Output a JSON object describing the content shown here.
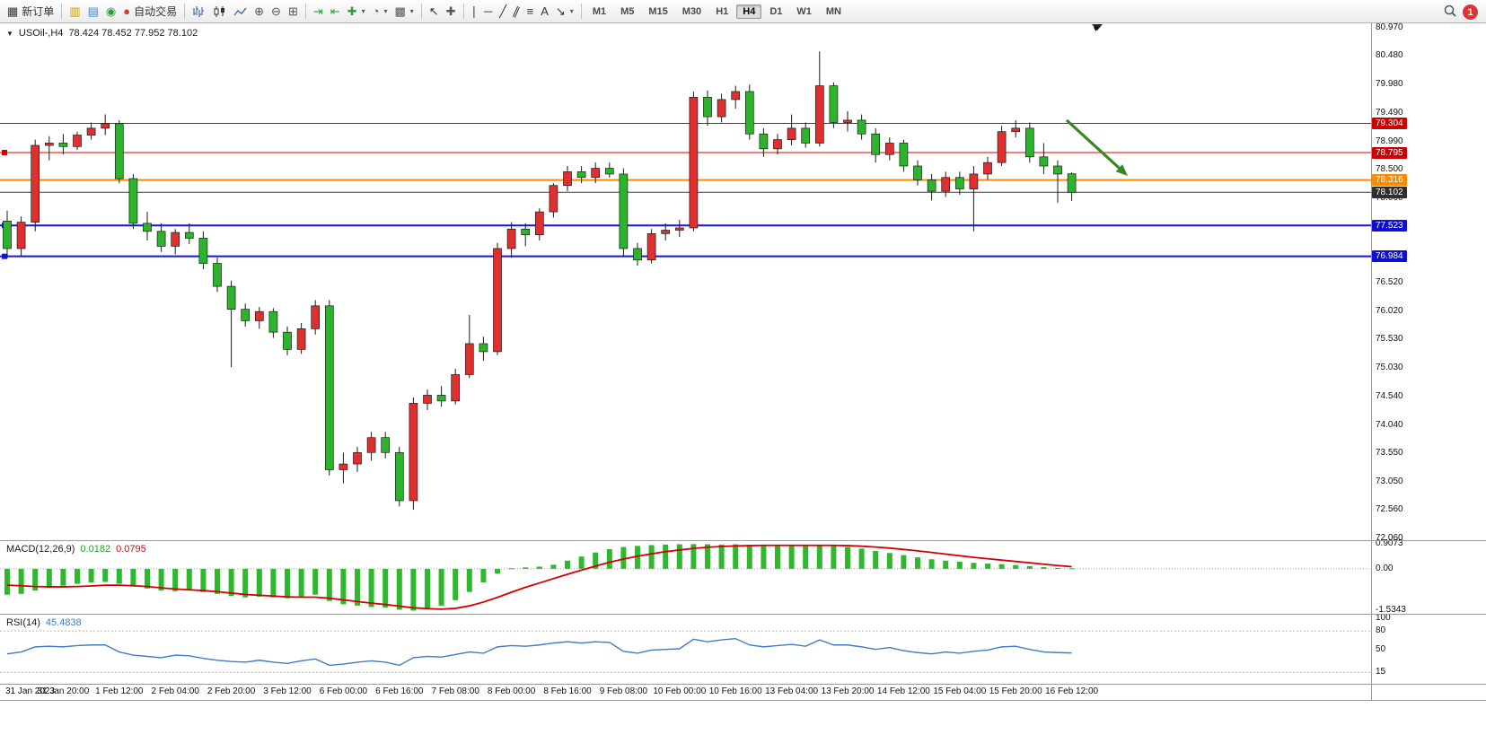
{
  "toolbar": {
    "new_order_label": "新订单",
    "auto_trading_label": "自动交易",
    "timeframes": [
      "M1",
      "M5",
      "M15",
      "M30",
      "H1",
      "H4",
      "D1",
      "W1",
      "MN"
    ],
    "active_timeframe": "H4",
    "notification_count": "1",
    "icons": {
      "new_order": "▦",
      "new_chart": "▥",
      "market_watch": "▤",
      "navigator": "◉",
      "auto_trading": "●",
      "zoom_in": "⊕",
      "zoom_out": "⊖",
      "tile_windows": "⊞",
      "auto_scroll": "⇥",
      "chart_shift": "⇤",
      "indicators": "✚",
      "periods": "◔",
      "templates": "▩",
      "cursor": "↖",
      "crosshair": "✚",
      "vertical_line": "∣",
      "horizontal_line": "─",
      "trendline": "╱",
      "channel": "∥",
      "fibonacci": "≡",
      "text_tool": "A",
      "arrows_tool": "↘",
      "dropdown": "▾"
    }
  },
  "chart": {
    "collapse_marker": "▼",
    "scroll_marker": "▼"
  },
  "chart_data": [
    {
      "type": "candlestick",
      "title": "USOil-,H4",
      "ohlc_text": "78.424 78.452 77.952 78.102",
      "up_color": "#e02f2f",
      "down_color": "#2cb42c",
      "ylim": [
        72.03,
        81.05
      ],
      "price_axis_labels": [
        "80.970",
        "80.480",
        "79.980",
        "79.490",
        "78.990",
        "78.500",
        "78.000",
        "77.500",
        "77.000",
        "76.520",
        "76.020",
        "75.530",
        "75.030",
        "74.540",
        "74.040",
        "73.550",
        "73.050",
        "72.560",
        "72.060"
      ],
      "time_labels": [
        "31 Jan 2023",
        "31 Jan 20:00",
        "1 Feb 12:00",
        "2 Feb 04:00",
        "2 Feb 20:00",
        "3 Feb 12:00",
        "6 Feb 00:00",
        "6 Feb 16:00",
        "7 Feb 08:00",
        "8 Feb 00:00",
        "8 Feb 16:00",
        "9 Feb 08:00",
        "10 Feb 00:00",
        "10 Feb 16:00",
        "13 Feb 04:00",
        "13 Feb 20:00",
        "14 Feb 12:00",
        "15 Feb 04:00",
        "15 Feb 20:00",
        "16 Feb 12:00"
      ],
      "horizontal_lines": [
        {
          "price": 79.304,
          "color": "#dd0000",
          "width": 1,
          "tag_bg": "#cc0000",
          "left_marker": false
        },
        {
          "price": 78.795,
          "color": "#dd0000",
          "width": 1,
          "tag_bg": "#cc0000",
          "left_marker": true
        },
        {
          "price": 78.316,
          "color": "#ff8a00",
          "width": 2,
          "tag_bg": "#ff8a00",
          "left_marker": false
        },
        {
          "price": 78.102,
          "color": "#3c3c3c",
          "width": 1,
          "tag_bg": "#2e2e2e",
          "left_marker": false
        },
        {
          "price": 77.523,
          "color": "#1414dd",
          "width": 2,
          "tag_bg": "#0f0fd0",
          "left_marker": true
        },
        {
          "price": 76.984,
          "color": "#1414dd",
          "width": 2,
          "tag_bg": "#0f0fd0",
          "left_marker": true
        }
      ],
      "annotation_arrow": {
        "from": [
          1188,
          108
        ],
        "to": [
          1256,
          170
        ],
        "color": "#35891f"
      },
      "candles": [
        [
          77.6,
          77.78,
          76.95,
          77.12
        ],
        [
          77.12,
          77.68,
          76.98,
          77.58
        ],
        [
          77.58,
          79.02,
          77.42,
          78.92
        ],
        [
          78.92,
          79.08,
          78.66,
          78.96
        ],
        [
          78.96,
          79.12,
          78.76,
          78.9
        ],
        [
          78.9,
          79.16,
          78.84,
          79.1
        ],
        [
          79.1,
          79.32,
          79.02,
          79.22
        ],
        [
          79.22,
          79.46,
          79.1,
          79.3
        ],
        [
          79.3,
          79.36,
          78.26,
          78.34
        ],
        [
          78.34,
          78.42,
          77.46,
          77.56
        ],
        [
          77.56,
          77.76,
          77.26,
          77.42
        ],
        [
          77.42,
          77.56,
          77.06,
          77.16
        ],
        [
          77.16,
          77.46,
          77.02,
          77.4
        ],
        [
          77.4,
          77.56,
          77.2,
          77.3
        ],
        [
          77.3,
          77.42,
          76.76,
          76.86
        ],
        [
          76.86,
          76.96,
          76.36,
          76.46
        ],
        [
          76.46,
          76.56,
          75.05,
          76.06
        ],
        [
          76.06,
          76.16,
          75.76,
          75.86
        ],
        [
          75.86,
          76.1,
          75.72,
          76.02
        ],
        [
          76.02,
          76.08,
          75.56,
          75.66
        ],
        [
          75.66,
          75.76,
          75.26,
          75.36
        ],
        [
          75.36,
          75.82,
          75.28,
          75.72
        ],
        [
          75.72,
          76.22,
          75.62,
          76.12
        ],
        [
          76.12,
          76.22,
          73.16,
          73.26
        ],
        [
          73.26,
          73.56,
          73.02,
          73.36
        ],
        [
          73.36,
          73.66,
          73.22,
          73.56
        ],
        [
          73.56,
          73.92,
          73.42,
          73.82
        ],
        [
          73.82,
          73.92,
          73.46,
          73.56
        ],
        [
          73.56,
          73.66,
          72.62,
          72.72
        ],
        [
          72.72,
          74.52,
          72.56,
          74.42
        ],
        [
          74.42,
          74.66,
          74.3,
          74.56
        ],
        [
          74.56,
          74.72,
          74.36,
          74.46
        ],
        [
          74.46,
          75.02,
          74.4,
          74.92
        ],
        [
          74.92,
          75.96,
          74.86,
          75.46
        ],
        [
          75.46,
          75.58,
          75.16,
          75.32
        ],
        [
          75.32,
          77.22,
          75.26,
          77.12
        ],
        [
          77.12,
          77.58,
          76.96,
          77.46
        ],
        [
          77.46,
          77.56,
          77.16,
          77.36
        ],
        [
          77.36,
          77.82,
          77.26,
          77.76
        ],
        [
          77.76,
          78.26,
          77.66,
          78.22
        ],
        [
          78.22,
          78.56,
          78.12,
          78.46
        ],
        [
          78.46,
          78.56,
          78.26,
          78.36
        ],
        [
          78.36,
          78.62,
          78.26,
          78.52
        ],
        [
          78.52,
          78.62,
          78.36,
          78.42
        ],
        [
          78.42,
          78.52,
          76.98,
          77.12
        ],
        [
          77.12,
          77.22,
          76.82,
          76.92
        ],
        [
          76.92,
          77.46,
          76.86,
          77.38
        ],
        [
          77.38,
          77.56,
          77.26,
          77.44
        ],
        [
          77.44,
          77.62,
          77.32,
          77.48
        ],
        [
          77.48,
          79.86,
          77.42,
          79.76
        ],
        [
          79.76,
          79.88,
          79.26,
          79.42
        ],
        [
          79.42,
          79.82,
          79.32,
          79.72
        ],
        [
          79.72,
          79.96,
          79.56,
          79.86
        ],
        [
          79.86,
          79.98,
          79.02,
          79.12
        ],
        [
          79.12,
          79.22,
          78.72,
          78.86
        ],
        [
          78.86,
          79.12,
          78.76,
          79.02
        ],
        [
          79.02,
          79.46,
          78.92,
          79.22
        ],
        [
          79.22,
          79.32,
          78.88,
          78.96
        ],
        [
          78.96,
          80.56,
          78.9,
          79.96
        ],
        [
          79.96,
          80.02,
          79.22,
          79.32
        ],
        [
          79.32,
          79.52,
          79.16,
          79.36
        ],
        [
          79.36,
          79.46,
          79.02,
          79.12
        ],
        [
          79.12,
          79.22,
          78.62,
          78.76
        ],
        [
          78.76,
          79.06,
          78.66,
          78.96
        ],
        [
          78.96,
          79.02,
          78.46,
          78.56
        ],
        [
          78.56,
          78.66,
          78.22,
          78.32
        ],
        [
          78.32,
          78.42,
          77.96,
          78.12
        ],
        [
          78.12,
          78.46,
          78.02,
          78.36
        ],
        [
          78.36,
          78.46,
          78.06,
          78.16
        ],
        [
          78.16,
          78.56,
          77.42,
          78.42
        ],
        [
          78.42,
          78.72,
          78.32,
          78.62
        ],
        [
          78.62,
          79.26,
          78.56,
          79.16
        ],
        [
          79.16,
          79.36,
          79.06,
          79.22
        ],
        [
          79.22,
          79.32,
          78.62,
          78.72
        ],
        [
          78.72,
          78.96,
          78.42,
          78.56
        ],
        [
          78.56,
          78.66,
          77.92,
          78.42
        ],
        [
          78.424,
          78.452,
          77.952,
          78.102
        ]
      ]
    },
    {
      "type": "bar",
      "title": "MACD(12,26,9)",
      "value_main": "0.0182",
      "value_signal": "0.0795",
      "histogram_color": "#2db82d",
      "signal_color": "#d40000",
      "ylim": [
        -1.65,
        1.05
      ],
      "axis_labels": [
        "0.9073",
        "0.00",
        "-1.5343"
      ],
      "histogram": [
        -0.95,
        -0.92,
        -0.8,
        -0.7,
        -0.62,
        -0.55,
        -0.5,
        -0.48,
        -0.55,
        -0.65,
        -0.72,
        -0.8,
        -0.82,
        -0.8,
        -0.85,
        -0.92,
        -1.0,
        -1.05,
        -1.02,
        -1.05,
        -1.08,
        -1.02,
        -0.95,
        -1.18,
        -1.3,
        -1.35,
        -1.4,
        -1.42,
        -1.5,
        -1.5343,
        -1.45,
        -1.35,
        -1.15,
        -0.85,
        -0.5,
        -0.18,
        0.02,
        0.05,
        0.08,
        0.15,
        0.3,
        0.45,
        0.6,
        0.72,
        0.8,
        0.84,
        0.87,
        0.89,
        0.9,
        0.9073,
        0.9,
        0.89,
        0.9,
        0.88,
        0.87,
        0.86,
        0.87,
        0.86,
        0.87,
        0.84,
        0.8,
        0.74,
        0.66,
        0.58,
        0.5,
        0.42,
        0.35,
        0.3,
        0.26,
        0.22,
        0.19,
        0.17,
        0.14,
        0.1,
        0.06,
        0.03,
        0.0182
      ],
      "signal": [
        -0.6,
        -0.62,
        -0.65,
        -0.66,
        -0.66,
        -0.65,
        -0.63,
        -0.6,
        -0.6,
        -0.62,
        -0.65,
        -0.7,
        -0.74,
        -0.77,
        -0.8,
        -0.84,
        -0.89,
        -0.94,
        -0.97,
        -1.0,
        -1.03,
        -1.04,
        -1.04,
        -1.08,
        -1.14,
        -1.2,
        -1.26,
        -1.31,
        -1.37,
        -1.43,
        -1.46,
        -1.48,
        -1.45,
        -1.36,
        -1.22,
        -1.05,
        -0.86,
        -0.68,
        -0.52,
        -0.36,
        -0.2,
        -0.05,
        0.1,
        0.24,
        0.36,
        0.46,
        0.55,
        0.63,
        0.69,
        0.75,
        0.79,
        0.82,
        0.84,
        0.85,
        0.86,
        0.86,
        0.86,
        0.86,
        0.86,
        0.86,
        0.85,
        0.83,
        0.8,
        0.76,
        0.71,
        0.66,
        0.6,
        0.54,
        0.48,
        0.42,
        0.37,
        0.32,
        0.27,
        0.22,
        0.17,
        0.12,
        0.0795
      ]
    },
    {
      "type": "line",
      "title": "RSI(14)",
      "value": "45.4838",
      "line_color": "#3f7cc4",
      "ylim": [
        -3,
        107
      ],
      "axis_labels": [
        "100",
        "80",
        "50",
        "15"
      ],
      "levels": [
        80,
        15
      ],
      "values": [
        44,
        47,
        55,
        56,
        55,
        57,
        58,
        58,
        47,
        42,
        40,
        38,
        42,
        41,
        37,
        34,
        32,
        31,
        34,
        31,
        29,
        33,
        36,
        26,
        28,
        31,
        33,
        31,
        26,
        38,
        40,
        39,
        43,
        47,
        45,
        55,
        57,
        56,
        58,
        61,
        63,
        61,
        63,
        62,
        48,
        45,
        50,
        51,
        52,
        67,
        63,
        66,
        68,
        58,
        55,
        57,
        59,
        56,
        66,
        58,
        58,
        55,
        51,
        54,
        49,
        46,
        44,
        47,
        45,
        48,
        50,
        55,
        56,
        51,
        47,
        46,
        45.4838
      ]
    }
  ]
}
